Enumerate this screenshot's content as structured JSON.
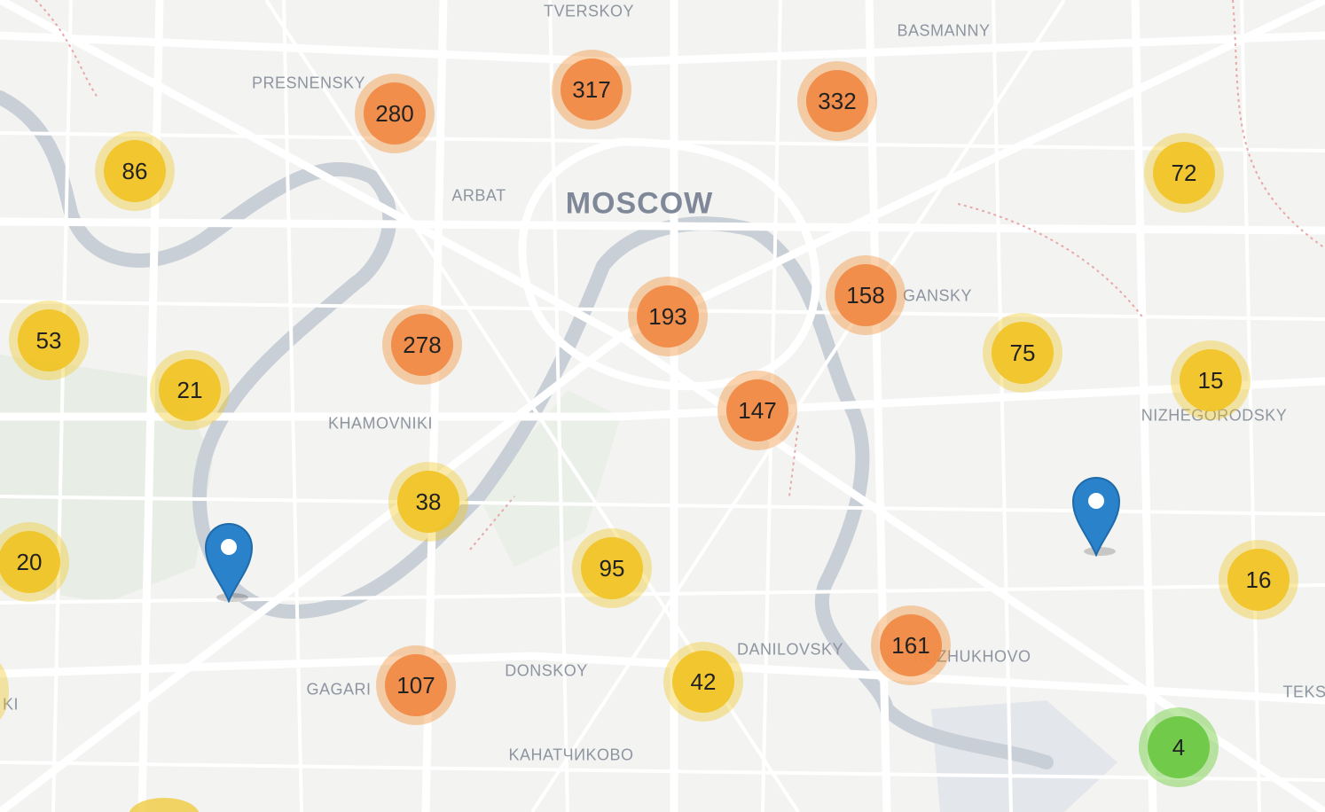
{
  "map": {
    "colors": {
      "background": "#f3f3f1",
      "road": "#ffffff",
      "river": "#c9cfd6",
      "label": "#8e95a1",
      "cluster_large": "#f08a46",
      "cluster_medium": "#f0c428",
      "cluster_small": "#6ec846",
      "marker": "#2a82cb"
    },
    "labels": {
      "tverskoy": "TVERSKOY",
      "basmanny": "BASMANNY",
      "presnensky": "PRESNENSKY",
      "arbat": "ARBAT",
      "moscow": "MOSCOW",
      "tagansky": "GANSKY",
      "khamovniki": "KHAMOVNIKI",
      "nizhegorodsky": "NIZHEGORODSKY",
      "danilovsky": "DANILOVSKY",
      "donskoy": "DONSKOY",
      "gagarinsky": "GAGARI",
      "kotlovka": "KAHATЧИKOBO",
      "pechatniki": "TEKS",
      "yuzhnoportovy": "KOZHUKHOVO",
      "ramenki": "KI"
    },
    "clusters": {
      "c317": "317",
      "c332": "332",
      "c280": "280",
      "c86": "86",
      "c72": "72",
      "c158": "158",
      "c193": "193",
      "c53": "53",
      "c278": "278",
      "c75": "75",
      "c15": "15",
      "c21": "21",
      "c147": "147",
      "c38": "38",
      "c20": "20",
      "c95": "95",
      "c16": "16",
      "c161": "161",
      "c107": "107",
      "c42": "42",
      "c4": "4"
    },
    "icons": {
      "marker": "map-pin-icon"
    }
  }
}
